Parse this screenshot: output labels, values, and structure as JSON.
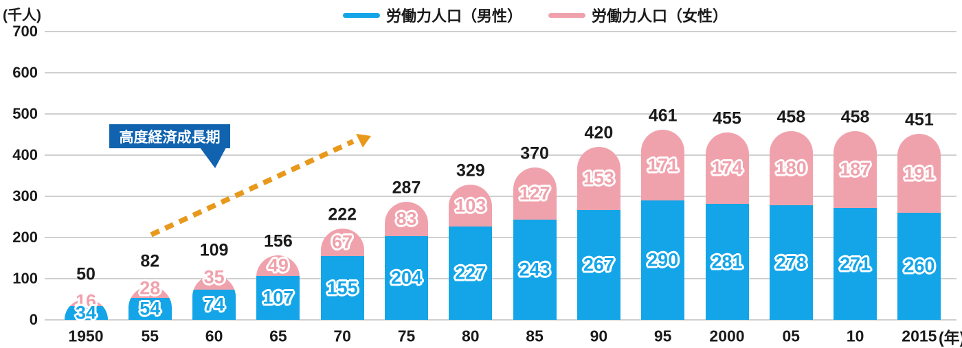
{
  "chart_data": {
    "type": "bar",
    "stacked": true,
    "unit_label": "(千人)",
    "x_suffix": "(年)",
    "categories": [
      "1950",
      "55",
      "60",
      "65",
      "70",
      "75",
      "80",
      "85",
      "90",
      "95",
      "2000",
      "05",
      "10",
      "2015"
    ],
    "series": [
      {
        "name": "労働力人口（男性）",
        "color": "#14A5E8",
        "values": [
          34,
          54,
          74,
          107,
          155,
          204,
          227,
          243,
          267,
          290,
          281,
          278,
          271,
          260
        ]
      },
      {
        "name": "労働力人口（女性）",
        "color": "#F0A2AC",
        "values": [
          16,
          28,
          35,
          49,
          67,
          83,
          103,
          127,
          153,
          171,
          174,
          180,
          187,
          191
        ]
      }
    ],
    "totals": [
      50,
      82,
      109,
      156,
      222,
      287,
      329,
      370,
      420,
      461,
      455,
      458,
      458,
      451
    ],
    "ylim": [
      0,
      700
    ],
    "yticks": [
      0,
      100,
      200,
      300,
      400,
      500,
      600,
      700
    ],
    "grid": true,
    "gridline_color": "#CFCFCF",
    "legend_position": "top",
    "annotation": {
      "text": "高度経済成長期",
      "color": "#1163AF"
    },
    "arrow": {
      "color": "#E8991C"
    }
  }
}
